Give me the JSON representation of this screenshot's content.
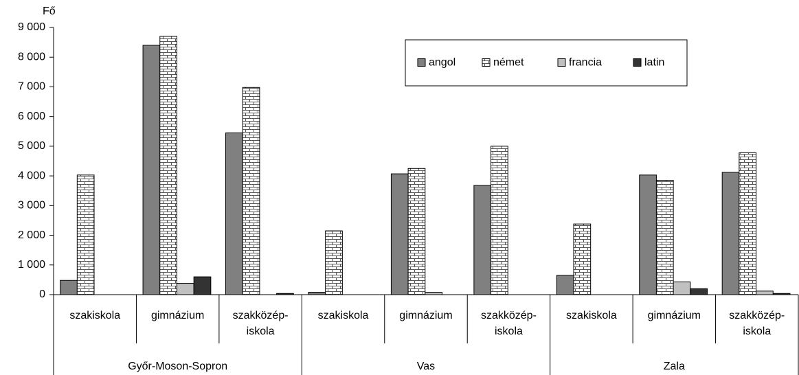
{
  "chart_data": {
    "type": "bar",
    "y_label": "Fő",
    "categories": [
      "szakiskola",
      "gimnázium",
      "szakközép-iskola",
      "szakiskola",
      "gimnázium",
      "szakközép-iskola",
      "szakiskola",
      "gimnázium",
      "szakközép-iskola"
    ],
    "groups": [
      "Győr-Moson-Sopron",
      "Vas",
      "Zala"
    ],
    "series": [
      {
        "name": "angol",
        "color": "#808080",
        "values": [
          480,
          8400,
          5450,
          80,
          4070,
          3680,
          650,
          4030,
          4120
        ]
      },
      {
        "name": "német",
        "color": "#ffffff",
        "pattern": "brick",
        "values": [
          4030,
          8700,
          6980,
          2150,
          4250,
          5000,
          2380,
          3850,
          4780
        ]
      },
      {
        "name": "francia",
        "color": "#c0c0c0",
        "values": [
          0,
          380,
          0,
          0,
          80,
          0,
          0,
          430,
          120
        ]
      },
      {
        "name": "latin",
        "color": "#333333",
        "values": [
          0,
          600,
          40,
          0,
          0,
          0,
          0,
          200,
          40
        ]
      }
    ],
    "ylim": [
      0,
      9000
    ],
    "yticks": [
      0,
      {
        "value": 1000,
        "label": "1 000"
      },
      {
        "value": 2000,
        "label": "2 000"
      },
      {
        "value": 3000,
        "label": "3 000"
      },
      {
        "value": 4000,
        "label": "4 000"
      },
      {
        "value": 5000,
        "label": "5 000"
      },
      {
        "value": 6000,
        "label": "6 000"
      },
      {
        "value": 7000,
        "label": "7 000"
      },
      {
        "value": 8000,
        "label": "8 000"
      },
      {
        "value": 9000,
        "label": "9 000"
      }
    ],
    "grid": false,
    "legend": "top-right"
  }
}
